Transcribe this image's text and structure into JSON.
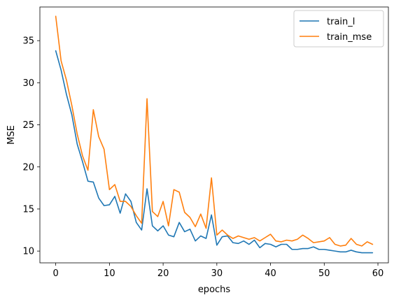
{
  "chart_data": {
    "type": "line",
    "title": "",
    "xlabel": "epochs",
    "ylabel": "MSE",
    "xlim": [
      -2.95,
      61.95
    ],
    "ylim": [
      8.6,
      39.0
    ],
    "xticks": [
      0,
      10,
      20,
      30,
      40,
      50,
      60
    ],
    "yticks": [
      10,
      15,
      20,
      25,
      30,
      35
    ],
    "grid": false,
    "legend_position": "top-right",
    "x": [
      0,
      1,
      2,
      3,
      4,
      5,
      6,
      7,
      8,
      9,
      10,
      11,
      12,
      13,
      14,
      15,
      16,
      17,
      18,
      19,
      20,
      21,
      22,
      23,
      24,
      25,
      26,
      27,
      28,
      29,
      30,
      31,
      32,
      33,
      34,
      35,
      36,
      37,
      38,
      39,
      40,
      41,
      42,
      43,
      44,
      45,
      46,
      47,
      48,
      49,
      50,
      51,
      52,
      53,
      54,
      55,
      56,
      57,
      58,
      59
    ],
    "series": [
      {
        "name": "train_l",
        "color": "#1f77b4",
        "values": [
          33.8,
          31.5,
          28.6,
          26.2,
          22.7,
          20.6,
          18.3,
          18.2,
          16.3,
          15.4,
          15.5,
          16.5,
          14.5,
          16.8,
          15.9,
          13.4,
          12.5,
          17.4,
          13.0,
          12.4,
          13.0,
          11.9,
          11.7,
          13.4,
          12.3,
          12.6,
          11.2,
          11.8,
          11.5,
          14.3,
          10.7,
          11.7,
          11.8,
          11.0,
          10.9,
          11.2,
          10.8,
          11.3,
          10.4,
          10.9,
          10.8,
          10.5,
          10.8,
          10.8,
          10.2,
          10.2,
          10.3,
          10.3,
          10.5,
          10.2,
          10.2,
          10.1,
          10.0,
          9.9,
          9.9,
          10.1,
          9.9,
          9.8,
          9.8,
          9.8
        ]
      },
      {
        "name": "train_mse",
        "color": "#ff7f0e",
        "values": [
          37.9,
          32.6,
          30.3,
          27.3,
          23.9,
          21.3,
          19.6,
          26.8,
          23.6,
          22.1,
          17.3,
          17.9,
          15.9,
          15.9,
          15.3,
          14.2,
          13.3,
          28.1,
          14.7,
          14.1,
          15.9,
          13.0,
          17.3,
          17.0,
          14.6,
          14.0,
          12.9,
          14.4,
          12.7,
          18.7,
          11.9,
          12.5,
          11.9,
          11.5,
          11.8,
          11.6,
          11.4,
          11.6,
          11.2,
          11.6,
          12.0,
          11.2,
          11.1,
          11.3,
          11.2,
          11.4,
          11.9,
          11.5,
          11.0,
          11.1,
          11.2,
          11.6,
          10.8,
          10.6,
          10.7,
          11.5,
          10.8,
          10.6,
          11.1,
          10.8
        ]
      }
    ]
  }
}
